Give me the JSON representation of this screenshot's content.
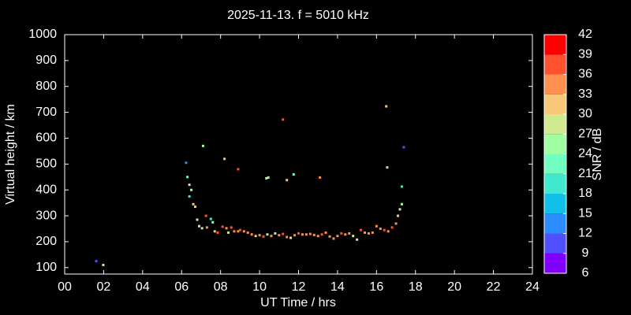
{
  "chart_data": {
    "type": "scatter",
    "title": "2025-11-13. f = 5010 kHz",
    "xlabel": "UT Time / hrs",
    "ylabel": "Virtual height / km",
    "xlim": [
      0,
      24
    ],
    "xticks": [
      {
        "value": 0,
        "label": "00"
      },
      {
        "value": 2,
        "label": "02"
      },
      {
        "value": 4,
        "label": "04"
      },
      {
        "value": 6,
        "label": "06"
      },
      {
        "value": 8,
        "label": "08"
      },
      {
        "value": 10,
        "label": "10"
      },
      {
        "value": 12,
        "label": "12"
      },
      {
        "value": 14,
        "label": "14"
      },
      {
        "value": 16,
        "label": "16"
      },
      {
        "value": 18,
        "label": "18"
      },
      {
        "value": 20,
        "label": "20"
      },
      {
        "value": 22,
        "label": "22"
      },
      {
        "value": 24,
        "label": "24"
      }
    ],
    "ylim": [
      75,
      1000
    ],
    "yticks": [
      100,
      200,
      300,
      400,
      500,
      600,
      700,
      800,
      900,
      1000
    ],
    "colorbar": {
      "label": "SNR / dB",
      "lim": [
        6,
        42
      ],
      "ticks": [
        6,
        9,
        12,
        15,
        18,
        21,
        24,
        27,
        30,
        33,
        36,
        39,
        42
      ],
      "colors": [
        "#8000ff",
        "#5050ff",
        "#2c8cff",
        "#10c0e8",
        "#40e8d0",
        "#70ffc0",
        "#a0ffa0",
        "#d0e890",
        "#f8c878",
        "#ff9050",
        "#ff5030",
        "#ff0000"
      ]
    },
    "x": [
      1.62,
      1.98,
      6.23,
      6.3,
      6.4,
      6.5,
      6.4,
      6.6,
      6.7,
      6.8,
      6.9,
      7.05,
      7.1,
      7.25,
      7.3,
      7.5,
      7.6,
      7.7,
      7.85,
      8.2,
      8.1,
      8.3,
      8.4,
      8.55,
      8.7,
      8.9,
      8.9,
      10.35,
      10.45,
      11.2,
      11.4,
      11.75,
      13.1,
      16.5,
      16.55,
      17.3,
      17.4,
      9.0,
      9.2,
      9.4,
      9.6,
      9.8,
      10.0,
      10.2,
      10.4,
      10.6,
      10.8,
      11.0,
      11.2,
      11.4,
      11.6,
      11.8,
      12.0,
      12.2,
      12.4,
      12.6,
      12.8,
      13.0,
      13.2,
      13.4,
      13.6,
      13.8,
      14.0,
      14.2,
      14.4,
      14.6,
      14.8,
      15.0,
      15.2,
      15.4,
      15.6,
      15.8,
      16.0,
      16.2,
      16.4,
      16.6,
      16.8,
      17.0,
      17.1,
      17.2,
      17.3
    ],
    "y": [
      125,
      110,
      505,
      450,
      420,
      400,
      375,
      345,
      335,
      285,
      260,
      252,
      570,
      300,
      255,
      288,
      275,
      240,
      235,
      520,
      258,
      252,
      235,
      255,
      240,
      480,
      240,
      445,
      448,
      672,
      438,
      460,
      448,
      723,
      487,
      413,
      565,
      245,
      240,
      235,
      228,
      222,
      225,
      220,
      228,
      222,
      232,
      225,
      230,
      218,
      215,
      225,
      232,
      228,
      228,
      230,
      226,
      222,
      228,
      235,
      220,
      212,
      222,
      232,
      228,
      232,
      222,
      208,
      245,
      235,
      232,
      235,
      260,
      250,
      245,
      240,
      255,
      270,
      300,
      325,
      345
    ],
    "snr": [
      10,
      28,
      13,
      22,
      28,
      24,
      20,
      30,
      31,
      28,
      24,
      28,
      24,
      36,
      34,
      20,
      24,
      32,
      36,
      32,
      36,
      33,
      28,
      36,
      34,
      38,
      35,
      24,
      28,
      38,
      30,
      22,
      33,
      30,
      31,
      18,
      9,
      36,
      34,
      33,
      35,
      30,
      34,
      36,
      24,
      33,
      28,
      34,
      36,
      33,
      28,
      34,
      36,
      35,
      34,
      33,
      35,
      34,
      36,
      33,
      34,
      35,
      33,
      36,
      34,
      33,
      28,
      26,
      36,
      34,
      33,
      35,
      33,
      34,
      36,
      35,
      36,
      34,
      30,
      27,
      24
    ]
  }
}
